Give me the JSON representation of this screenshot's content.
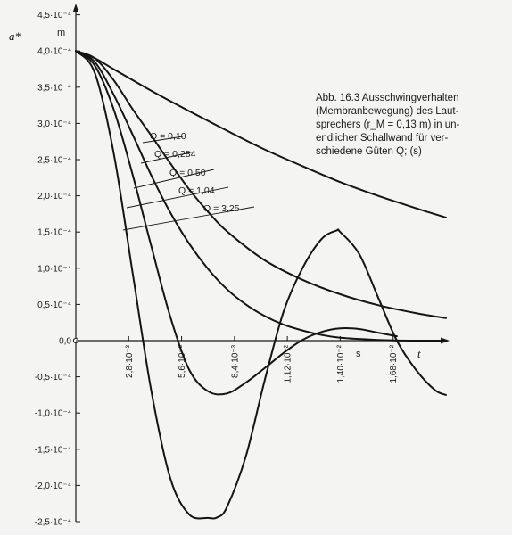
{
  "caption": {
    "lines": [
      "Abb. 16.3  Ausschwingverhalten",
      "(Membranbewegung) des Laut-",
      "sprechers (r_M = 0,13 m) in un-",
      "endlicher Schallwand für ver-",
      "schiedene Güten Q; (s)"
    ]
  },
  "chart_data": {
    "type": "line",
    "title": "",
    "ylabel": "a*",
    "yunit": "m",
    "xlabel": "t",
    "xunit": "s",
    "xlim": [
      0,
      0.0196
    ],
    "ylim": [
      -0.00025,
      0.00045
    ],
    "x_ticks": [
      0.0028,
      0.0056,
      0.0084,
      0.0112,
      0.014,
      0.0168
    ],
    "x_tick_labels": [
      "2,8·10⁻³",
      "5,6·10⁻³",
      "8,4·10⁻³",
      "1,12·10⁻²",
      "1,40·10⁻²",
      "1,68·10⁻²"
    ],
    "y_ticks": [
      0.00045,
      0.0004,
      0.00035,
      0.0003,
      0.00025,
      0.0002,
      0.00015,
      0.0001,
      5e-05,
      0,
      -5e-05,
      -0.0001,
      -0.00015,
      -0.0002,
      -0.00025
    ],
    "y_tick_labels": [
      "4,5·10⁻⁴",
      "4,0·10⁻⁴",
      "3,5·10⁻⁴",
      "3,0·10⁻⁴",
      "2,5·10⁻⁴",
      "2,0·10⁻⁴",
      "1,5·10⁻⁴",
      "1,0·10⁻⁴",
      "0,5·10⁻⁴",
      "0,0",
      "-0,5·10⁻⁴",
      "-1,0·10⁻⁴",
      "-1,5·10⁻⁴",
      "-2,0·10⁻⁴",
      "-2,5·10⁻⁴"
    ],
    "grid": false,
    "series": [
      {
        "name": "Q = 0,10",
        "x": [
          0,
          0.001,
          0.002,
          0.004,
          0.006,
          0.008,
          0.01,
          0.012,
          0.014,
          0.016,
          0.018,
          0.0196
        ],
        "y": [
          0.0004,
          0.00039,
          0.000375,
          0.000345,
          0.000317,
          0.00029,
          0.000264,
          0.000241,
          0.000219,
          0.0002,
          0.000183,
          0.00017
        ]
      },
      {
        "name": "Q = 0,284",
        "x": [
          0,
          0.001,
          0.002,
          0.003,
          0.004,
          0.005,
          0.006,
          0.007,
          0.008,
          0.01,
          0.012,
          0.014,
          0.016,
          0.018,
          0.0196
        ],
        "y": [
          0.0004,
          0.00039,
          0.00036,
          0.00032,
          0.000283,
          0.000245,
          0.000209,
          0.000178,
          0.000151,
          0.000111,
          8.4e-05,
          6.4e-05,
          4.9e-05,
          3.8e-05,
          3.1e-05
        ]
      },
      {
        "name": "Q = 0,50",
        "x": [
          0,
          0.001,
          0.002,
          0.003,
          0.004,
          0.005,
          0.006,
          0.007,
          0.008,
          0.009,
          0.01,
          0.011,
          0.012,
          0.013,
          0.014,
          0.016,
          0.018,
          0.0196
        ],
        "y": [
          0.0004,
          0.000385,
          0.00034,
          0.000285,
          0.000228,
          0.000177,
          0.000134,
          9.9e-05,
          7.1e-05,
          5e-05,
          3.4e-05,
          2.2e-05,
          1.4e-05,
          8e-06,
          4e-06,
          1e-06,
          0.0,
          0.0
        ]
      },
      {
        "name": "Q = 1,04",
        "x": [
          0,
          0.001,
          0.002,
          0.003,
          0.004,
          0.005,
          0.006,
          0.007,
          0.008,
          0.009,
          0.01,
          0.011,
          0.012,
          0.013,
          0.014,
          0.015,
          0.016,
          0.017
        ],
        "y": [
          0.0004,
          0.00038,
          0.00032,
          0.00023,
          0.00013,
          3.3e-05,
          -4e-05,
          -7e-05,
          -7.3e-05,
          -5.8e-05,
          -3.8e-05,
          -1.7e-05,
          1e-06,
          1.2e-05,
          1.7e-05,
          1.6e-05,
          1.1e-05,
          6e-06
        ]
      },
      {
        "name": "Q = 3,25",
        "x": [
          0,
          0.001,
          0.002,
          0.003,
          0.004,
          0.005,
          0.006,
          0.007,
          0.0075,
          0.008,
          0.009,
          0.01,
          0.011,
          0.012,
          0.013,
          0.0138,
          0.014,
          0.015,
          0.016,
          0.017,
          0.018,
          0.019,
          0.0196
        ],
        "y": [
          0.0004,
          0.00037,
          0.00026,
          9.5e-05,
          -7e-05,
          -0.00019,
          -0.00024,
          -0.000245,
          -0.000244,
          -0.00023,
          -0.00016,
          -5.5e-05,
          4e-05,
          0.0001,
          0.00014,
          0.000152,
          0.00015,
          0.00012,
          6e-05,
          0.0,
          -4e-05,
          -6.8e-05,
          -7.5e-05
        ]
      }
    ]
  }
}
